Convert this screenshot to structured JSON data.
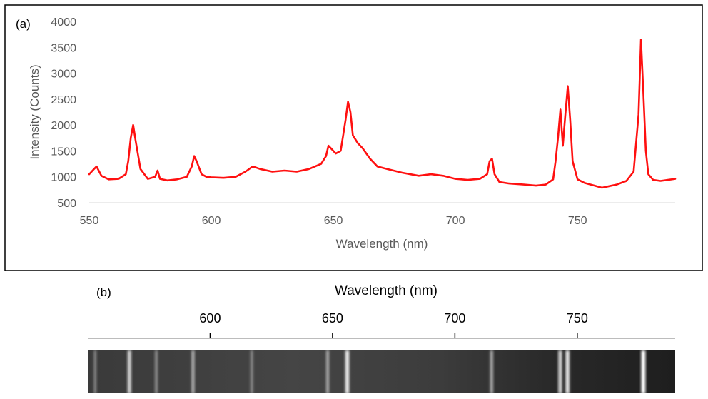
{
  "colors": {
    "line": "#ff1010",
    "axis": "#d9d9d9",
    "tick_text": "#595959",
    "frame": "#000000"
  },
  "panel_a": {
    "panel_label": "(a)",
    "chart_data": {
      "type": "line",
      "title": "",
      "xlabel": "Wavelength (nm)",
      "ylabel": "Intensity (Counts)",
      "xlim": [
        550,
        790
      ],
      "ylim": [
        500,
        4000
      ],
      "xticks": [
        "550",
        "600",
        "650",
        "700",
        "750"
      ],
      "xtick_values": [
        550,
        600,
        650,
        700,
        750
      ],
      "yticks": [
        "500",
        "1000",
        "1500",
        "2000",
        "2500",
        "3000",
        "3500",
        "4000"
      ],
      "ytick_values": [
        500,
        1000,
        1500,
        2000,
        2500,
        3000,
        3500,
        4000
      ],
      "grid": false,
      "series": [
        {
          "color": "#ff1010",
          "x": [
            550,
            552,
            553,
            555,
            558,
            562,
            565,
            566,
            567,
            568,
            569,
            571,
            574,
            577,
            578,
            579,
            582,
            586,
            590,
            592,
            593,
            594,
            596,
            598,
            600,
            605,
            610,
            614,
            617,
            620,
            625,
            630,
            635,
            640,
            645,
            647,
            648,
            649,
            651,
            653,
            654,
            655,
            656,
            657,
            658,
            660,
            662,
            665,
            668,
            672,
            678,
            685,
            690,
            695,
            700,
            705,
            710,
            713,
            714,
            715,
            716,
            718,
            722,
            728,
            733,
            737,
            740,
            741,
            742,
            743,
            744,
            745,
            746,
            747,
            748,
            750,
            753,
            757,
            760,
            763,
            766,
            770,
            773,
            775,
            776,
            777,
            778,
            779,
            781,
            784,
            787,
            790
          ],
          "y": [
            1050,
            1150,
            1200,
            1020,
            950,
            960,
            1050,
            1300,
            1750,
            2000,
            1700,
            1150,
            960,
            1000,
            1120,
            960,
            930,
            950,
            1000,
            1200,
            1400,
            1300,
            1050,
            1000,
            990,
            980,
            1000,
            1100,
            1200,
            1150,
            1100,
            1120,
            1100,
            1150,
            1250,
            1400,
            1600,
            1550,
            1450,
            1500,
            1800,
            2100,
            2450,
            2250,
            1800,
            1650,
            1550,
            1350,
            1200,
            1150,
            1080,
            1020,
            1050,
            1020,
            960,
            940,
            960,
            1050,
            1300,
            1350,
            1050,
            900,
            870,
            850,
            830,
            850,
            950,
            1300,
            1750,
            2300,
            1600,
            2200,
            2750,
            2100,
            1300,
            950,
            880,
            830,
            790,
            820,
            850,
            920,
            1100,
            2200,
            3650,
            2600,
            1500,
            1050,
            940,
            920,
            940,
            960
          ]
        }
      ]
    }
  },
  "panel_b": {
    "panel_label": "(b)",
    "axis_title": "Wavelength (nm)",
    "xlim": [
      550,
      790
    ],
    "ticks": [
      "600",
      "650",
      "700",
      "750"
    ],
    "tick_values": [
      600,
      650,
      700,
      750
    ],
    "spectrum_lines": [
      {
        "wl": 553,
        "intensity": 0.2
      },
      {
        "wl": 567,
        "intensity": 0.7
      },
      {
        "wl": 578,
        "intensity": 0.25
      },
      {
        "wl": 593,
        "intensity": 0.45
      },
      {
        "wl": 617,
        "intensity": 0.2
      },
      {
        "wl": 648,
        "intensity": 0.4
      },
      {
        "wl": 656,
        "intensity": 0.85
      },
      {
        "wl": 715,
        "intensity": 0.45
      },
      {
        "wl": 743,
        "intensity": 0.75
      },
      {
        "wl": 746,
        "intensity": 0.85
      },
      {
        "wl": 777,
        "intensity": 1.0
      }
    ]
  }
}
